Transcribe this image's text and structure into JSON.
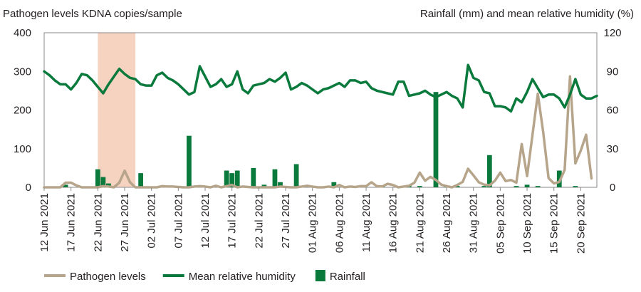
{
  "chart_data": {
    "type": "line",
    "left_axis_title": "Pathogen levels KDNA copies/sample",
    "right_axis_title": "Rainfall (mm) and mean relative humidity (%)",
    "y_left": {
      "min": 0,
      "max": 400,
      "ticks": [
        "0",
        "100",
        "200",
        "300",
        "400"
      ]
    },
    "y_right": {
      "min": 0,
      "max": 120,
      "ticks": [
        "0",
        "30",
        "60",
        "90",
        "120"
      ]
    },
    "x_tick_labels": [
      "12 Jun 2021",
      "17 Jun 2021",
      "22 Jun 2021",
      "27 Jun 2021",
      "02 Jul 2021",
      "07 Jul 2021",
      "12 Jul 2021",
      "17 Jul 2021",
      "22 Jul 2021",
      "27 Jul 2021",
      "01 Aug 2021",
      "06 Aug 2021",
      "11 Aug 2021",
      "16 Aug 2021",
      "21 Aug 2021",
      "26 Aug 2021",
      "31 Aug 2021",
      "05 Sep 2021",
      "10 Sep 2021",
      "15 Sep 2021",
      "20 Sep 2021"
    ],
    "x_start": "2021-06-12",
    "x_end": "2021-09-23",
    "highlight_range": [
      "2021-06-22",
      "2021-06-29"
    ],
    "series": [
      {
        "name": "Pathogen levels",
        "axis": "left",
        "color": "#b7a58b",
        "style": "line",
        "points": [
          [
            "2021-06-12",
            0
          ],
          [
            "2021-06-13",
            0
          ],
          [
            "2021-06-14",
            0
          ],
          [
            "2021-06-15",
            0
          ],
          [
            "2021-06-16",
            12
          ],
          [
            "2021-06-17",
            12
          ],
          [
            "2021-06-18",
            5
          ],
          [
            "2021-06-19",
            0
          ],
          [
            "2021-06-20",
            0
          ],
          [
            "2021-06-21",
            0
          ],
          [
            "2021-06-22",
            0
          ],
          [
            "2021-06-23",
            3
          ],
          [
            "2021-06-24",
            2
          ],
          [
            "2021-06-25",
            0
          ],
          [
            "2021-06-26",
            12
          ],
          [
            "2021-06-27",
            43
          ],
          [
            "2021-06-28",
            13
          ],
          [
            "2021-06-29",
            0
          ],
          [
            "2021-06-30",
            0
          ],
          [
            "2021-07-01",
            0
          ],
          [
            "2021-07-02",
            0
          ],
          [
            "2021-07-03",
            0
          ],
          [
            "2021-07-04",
            3
          ],
          [
            "2021-07-05",
            2
          ],
          [
            "2021-07-06",
            2
          ],
          [
            "2021-07-07",
            1
          ],
          [
            "2021-07-08",
            0
          ],
          [
            "2021-07-09",
            0
          ],
          [
            "2021-07-10",
            2
          ],
          [
            "2021-07-11",
            3
          ],
          [
            "2021-07-12",
            2
          ],
          [
            "2021-07-13",
            0
          ],
          [
            "2021-07-14",
            4
          ],
          [
            "2021-07-15",
            0
          ],
          [
            "2021-07-16",
            3
          ],
          [
            "2021-07-17",
            6
          ],
          [
            "2021-07-18",
            0
          ],
          [
            "2021-07-19",
            2
          ],
          [
            "2021-07-20",
            1
          ],
          [
            "2021-07-21",
            0
          ],
          [
            "2021-07-22",
            0
          ],
          [
            "2021-07-23",
            0
          ],
          [
            "2021-07-24",
            0
          ],
          [
            "2021-07-25",
            0
          ],
          [
            "2021-07-26",
            2
          ],
          [
            "2021-07-27",
            1
          ],
          [
            "2021-07-28",
            0
          ],
          [
            "2021-07-29",
            0
          ],
          [
            "2021-07-30",
            2
          ],
          [
            "2021-07-31",
            4
          ],
          [
            "2021-08-01",
            2
          ],
          [
            "2021-08-02",
            0
          ],
          [
            "2021-08-03",
            0
          ],
          [
            "2021-08-04",
            2
          ],
          [
            "2021-08-05",
            0
          ],
          [
            "2021-08-06",
            6
          ],
          [
            "2021-08-07",
            0
          ],
          [
            "2021-08-08",
            2
          ],
          [
            "2021-08-09",
            1
          ],
          [
            "2021-08-10",
            3
          ],
          [
            "2021-08-11",
            3
          ],
          [
            "2021-08-12",
            13
          ],
          [
            "2021-08-13",
            3
          ],
          [
            "2021-08-14",
            2
          ],
          [
            "2021-08-15",
            9
          ],
          [
            "2021-08-16",
            6
          ],
          [
            "2021-08-17",
            0
          ],
          [
            "2021-08-18",
            2
          ],
          [
            "2021-08-19",
            4
          ],
          [
            "2021-08-20",
            12
          ],
          [
            "2021-08-21",
            38
          ],
          [
            "2021-08-22",
            17
          ],
          [
            "2021-08-23",
            27
          ],
          [
            "2021-08-24",
            19
          ],
          [
            "2021-08-25",
            7
          ],
          [
            "2021-08-26",
            3
          ],
          [
            "2021-08-27",
            0
          ],
          [
            "2021-08-28",
            6
          ],
          [
            "2021-08-29",
            14
          ],
          [
            "2021-08-30",
            48
          ],
          [
            "2021-08-31",
            31
          ],
          [
            "2021-09-01",
            13
          ],
          [
            "2021-09-02",
            7
          ],
          [
            "2021-09-03",
            5
          ],
          [
            "2021-09-04",
            17
          ],
          [
            "2021-09-05",
            38
          ],
          [
            "2021-09-06",
            16
          ],
          [
            "2021-09-07",
            19
          ],
          [
            "2021-09-08",
            12
          ],
          [
            "2021-09-09",
            112
          ],
          [
            "2021-09-10",
            29
          ],
          [
            "2021-09-11",
            135
          ],
          [
            "2021-09-12",
            242
          ],
          [
            "2021-09-13",
            143
          ],
          [
            "2021-09-14",
            24
          ],
          [
            "2021-09-15",
            10
          ],
          [
            "2021-09-16",
            14
          ],
          [
            "2021-09-17",
            45
          ],
          [
            "2021-09-18",
            287
          ],
          [
            "2021-09-19",
            62
          ],
          [
            "2021-09-20",
            95
          ],
          [
            "2021-09-21",
            136
          ],
          [
            "2021-09-22",
            23
          ]
        ]
      },
      {
        "name": "Mean relative humidity",
        "axis": "right",
        "color": "#0a7a3c",
        "style": "line",
        "points": [
          [
            "2021-06-12",
            90
          ],
          [
            "2021-06-13",
            87
          ],
          [
            "2021-06-14",
            83
          ],
          [
            "2021-06-15",
            80
          ],
          [
            "2021-06-16",
            80
          ],
          [
            "2021-06-17",
            76
          ],
          [
            "2021-06-18",
            81
          ],
          [
            "2021-06-19",
            88
          ],
          [
            "2021-06-20",
            87
          ],
          [
            "2021-06-21",
            83
          ],
          [
            "2021-06-22",
            78
          ],
          [
            "2021-06-23",
            73
          ],
          [
            "2021-06-24",
            80
          ],
          [
            "2021-06-25",
            86
          ],
          [
            "2021-06-26",
            92
          ],
          [
            "2021-06-27",
            88
          ],
          [
            "2021-06-28",
            85
          ],
          [
            "2021-06-29",
            84
          ],
          [
            "2021-06-30",
            80
          ],
          [
            "2021-07-01",
            79
          ],
          [
            "2021-07-02",
            79
          ],
          [
            "2021-07-03",
            87
          ],
          [
            "2021-07-04",
            89
          ],
          [
            "2021-07-05",
            85
          ],
          [
            "2021-07-06",
            83
          ],
          [
            "2021-07-07",
            80
          ],
          [
            "2021-07-08",
            76
          ],
          [
            "2021-07-09",
            72
          ],
          [
            "2021-07-10",
            74
          ],
          [
            "2021-07-11",
            94
          ],
          [
            "2021-07-12",
            86
          ],
          [
            "2021-07-13",
            78
          ],
          [
            "2021-07-14",
            80
          ],
          [
            "2021-07-15",
            84
          ],
          [
            "2021-07-16",
            78
          ],
          [
            "2021-07-17",
            80
          ],
          [
            "2021-07-18",
            90
          ],
          [
            "2021-07-19",
            76
          ],
          [
            "2021-07-20",
            73
          ],
          [
            "2021-07-21",
            79
          ],
          [
            "2021-07-22",
            80
          ],
          [
            "2021-07-23",
            81
          ],
          [
            "2021-07-24",
            84
          ],
          [
            "2021-07-25",
            82
          ],
          [
            "2021-07-26",
            85
          ],
          [
            "2021-07-27",
            89
          ],
          [
            "2021-07-28",
            76
          ],
          [
            "2021-07-29",
            78
          ],
          [
            "2021-07-30",
            81
          ],
          [
            "2021-07-31",
            79
          ],
          [
            "2021-08-01",
            76
          ],
          [
            "2021-08-02",
            73
          ],
          [
            "2021-08-03",
            76
          ],
          [
            "2021-08-04",
            77
          ],
          [
            "2021-08-05",
            79
          ],
          [
            "2021-08-06",
            81
          ],
          [
            "2021-08-07",
            78
          ],
          [
            "2021-08-08",
            83
          ],
          [
            "2021-08-09",
            83
          ],
          [
            "2021-08-10",
            81
          ],
          [
            "2021-08-11",
            82
          ],
          [
            "2021-08-12",
            77
          ],
          [
            "2021-08-13",
            75
          ],
          [
            "2021-08-14",
            74
          ],
          [
            "2021-08-15",
            73
          ],
          [
            "2021-08-16",
            72
          ],
          [
            "2021-08-17",
            82
          ],
          [
            "2021-08-18",
            82
          ],
          [
            "2021-08-19",
            71
          ],
          [
            "2021-08-20",
            72
          ],
          [
            "2021-08-21",
            73
          ],
          [
            "2021-08-22",
            75
          ],
          [
            "2021-08-23",
            72
          ],
          [
            "2021-08-24",
            70
          ],
          [
            "2021-08-25",
            72
          ],
          [
            "2021-08-26",
            74
          ],
          [
            "2021-08-27",
            71
          ],
          [
            "2021-08-28",
            69
          ],
          [
            "2021-08-29",
            62
          ],
          [
            "2021-08-30",
            95
          ],
          [
            "2021-08-31",
            85
          ],
          [
            "2021-09-01",
            83
          ],
          [
            "2021-09-02",
            74
          ],
          [
            "2021-09-03",
            73
          ],
          [
            "2021-09-04",
            63
          ],
          [
            "2021-09-05",
            63
          ],
          [
            "2021-09-06",
            62
          ],
          [
            "2021-09-07",
            59
          ],
          [
            "2021-09-08",
            69
          ],
          [
            "2021-09-09",
            66
          ],
          [
            "2021-09-10",
            74
          ],
          [
            "2021-09-11",
            84
          ],
          [
            "2021-09-12",
            77
          ],
          [
            "2021-09-13",
            70
          ],
          [
            "2021-09-14",
            72
          ],
          [
            "2021-09-15",
            72
          ],
          [
            "2021-09-16",
            69
          ],
          [
            "2021-09-17",
            62
          ],
          [
            "2021-09-18",
            72
          ],
          [
            "2021-09-19",
            84
          ],
          [
            "2021-09-20",
            72
          ],
          [
            "2021-09-21",
            69
          ],
          [
            "2021-09-22",
            69
          ],
          [
            "2021-09-23",
            71
          ]
        ]
      },
      {
        "name": "Rainfall",
        "axis": "right",
        "color": "#0a7a3c",
        "style": "bar",
        "points": [
          [
            "2021-06-16",
            2
          ],
          [
            "2021-06-22",
            14
          ],
          [
            "2021-06-23",
            8
          ],
          [
            "2021-06-24",
            3
          ],
          [
            "2021-06-30",
            11
          ],
          [
            "2021-07-09",
            40
          ],
          [
            "2021-07-16",
            13
          ],
          [
            "2021-07-17",
            11
          ],
          [
            "2021-07-18",
            13
          ],
          [
            "2021-07-21",
            15
          ],
          [
            "2021-07-23",
            2
          ],
          [
            "2021-07-25",
            14
          ],
          [
            "2021-07-26",
            4
          ],
          [
            "2021-07-29",
            18
          ],
          [
            "2021-08-05",
            4
          ],
          [
            "2021-08-14",
            1
          ],
          [
            "2021-08-19",
            1
          ],
          [
            "2021-08-21",
            1
          ],
          [
            "2021-08-24",
            74
          ],
          [
            "2021-08-26",
            1
          ],
          [
            "2021-08-28",
            1
          ],
          [
            "2021-09-02",
            1
          ],
          [
            "2021-09-03",
            25
          ],
          [
            "2021-09-08",
            1
          ],
          [
            "2021-09-10",
            2
          ],
          [
            "2021-09-12",
            1
          ],
          [
            "2021-09-16",
            13
          ],
          [
            "2021-09-19",
            1
          ]
        ]
      }
    ],
    "legend": {
      "position": "bottom",
      "items": [
        "Pathogen levels",
        "Mean relative humidity",
        "Rainfall"
      ]
    }
  }
}
